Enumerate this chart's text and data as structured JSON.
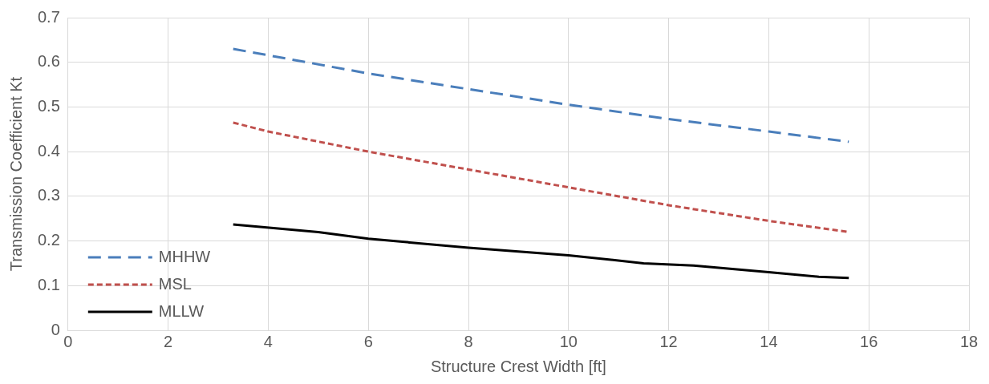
{
  "chart_data": {
    "type": "line",
    "xlabel": "Structure Crest Width [ft]",
    "ylabel": "Transmission Coefficient Kt",
    "xlim": [
      0,
      18
    ],
    "xticks": [
      0,
      2,
      4,
      6,
      8,
      10,
      12,
      14,
      16,
      18
    ],
    "ylim": [
      0,
      0.7
    ],
    "yticks": [
      0,
      0.1,
      0.2,
      0.3,
      0.4,
      0.5,
      0.6,
      0.7
    ],
    "grid": true,
    "legend": "bottom left",
    "marker": "none",
    "series": [
      {
        "name": "MHHW",
        "color": "#4a7ebb",
        "line_style": "dashed",
        "x": [
          3.3,
          6,
          8,
          10,
          12,
          14,
          15.6
        ],
        "values": [
          0.63,
          0.575,
          0.54,
          0.505,
          0.473,
          0.445,
          0.422
        ]
      },
      {
        "name": "MSL",
        "color": "#c0504d",
        "line_style": "dotted",
        "x": [
          3.3,
          4,
          6,
          8,
          10,
          11.5,
          12,
          14,
          15.6
        ],
        "values": [
          0.465,
          0.445,
          0.4,
          0.36,
          0.32,
          0.29,
          0.28,
          0.245,
          0.22
        ]
      },
      {
        "name": "MLLW",
        "color": "#000000",
        "line_style": "solid",
        "x": [
          3.3,
          5,
          6,
          8,
          10,
          11.5,
          12.5,
          14,
          15,
          15.6
        ],
        "values": [
          0.237,
          0.22,
          0.205,
          0.185,
          0.168,
          0.15,
          0.145,
          0.13,
          0.12,
          0.117
        ]
      }
    ]
  }
}
